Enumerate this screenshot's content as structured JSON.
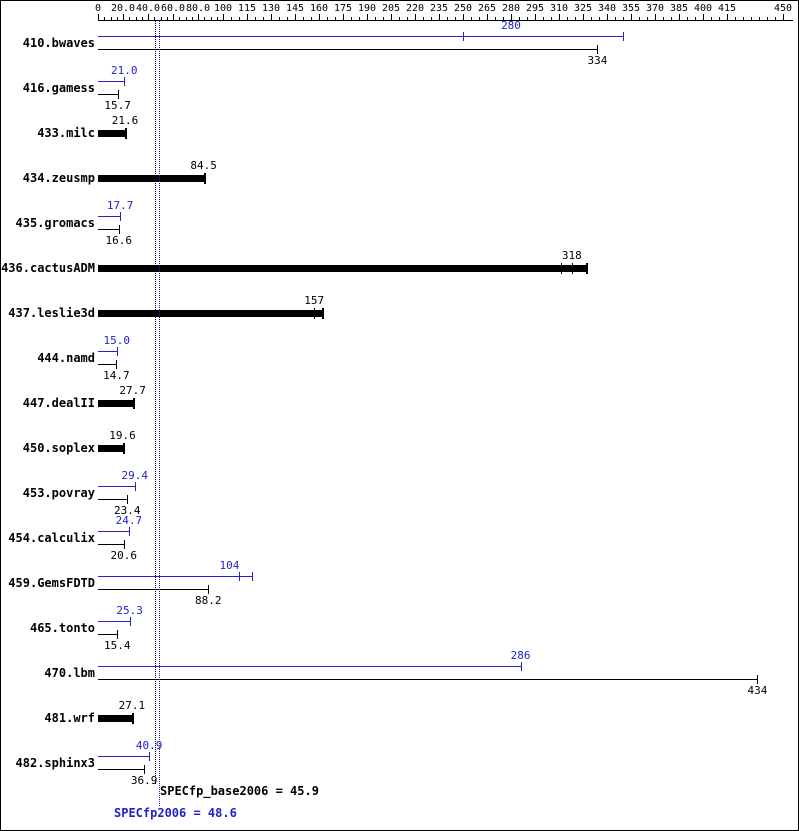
{
  "chart_data": {
    "type": "bar",
    "orientation": "horizontal",
    "title": "",
    "colors": {
      "peak": "#2222cc",
      "base": "#000000"
    },
    "axis": {
      "position": "top",
      "ticks": [
        {
          "v": 0,
          "label": "0"
        },
        {
          "v": 20,
          "label": "20.0"
        },
        {
          "v": 40,
          "label": "40.0"
        },
        {
          "v": 60,
          "label": "60.0"
        },
        {
          "v": 80,
          "label": "80.0"
        },
        {
          "v": 100,
          "label": "100"
        },
        {
          "v": 115,
          "label": "115"
        },
        {
          "v": 130,
          "label": "130"
        },
        {
          "v": 145,
          "label": "145"
        },
        {
          "v": 160,
          "label": "160"
        },
        {
          "v": 175,
          "label": "175"
        },
        {
          "v": 190,
          "label": "190"
        },
        {
          "v": 205,
          "label": "205"
        },
        {
          "v": 220,
          "label": "220"
        },
        {
          "v": 235,
          "label": "235"
        },
        {
          "v": 250,
          "label": "250"
        },
        {
          "v": 265,
          "label": "265"
        },
        {
          "v": 280,
          "label": "280"
        },
        {
          "v": 295,
          "label": "295"
        },
        {
          "v": 310,
          "label": "310"
        },
        {
          "v": 325,
          "label": "325"
        },
        {
          "v": 340,
          "label": "340"
        },
        {
          "v": 355,
          "label": "355"
        },
        {
          "v": 370,
          "label": "370"
        },
        {
          "v": 385,
          "label": "385"
        },
        {
          "v": 400,
          "label": "400"
        },
        {
          "v": 415,
          "label": "415"
        },
        {
          "v": 450,
          "label": "450"
        }
      ]
    },
    "benchmarks": [
      {
        "name": "410.bwaves",
        "peak": {
          "label": "280",
          "value": 280,
          "bar_end": 350,
          "ticks": [
            250
          ]
        },
        "base": {
          "label": "334",
          "value": 334
        }
      },
      {
        "name": "416.gamess",
        "peak": {
          "label": "21.0",
          "value": 21.0
        },
        "base": {
          "label": "15.7",
          "value": 15.7
        }
      },
      {
        "name": "433.milc",
        "single": {
          "label": "21.6",
          "value": 21.6
        }
      },
      {
        "name": "434.zeusmp",
        "single": {
          "label": "84.5",
          "value": 84.5
        }
      },
      {
        "name": "435.gromacs",
        "peak": {
          "label": "17.7",
          "value": 17.7
        },
        "base": {
          "label": "16.6",
          "value": 16.6
        }
      },
      {
        "name": "436.cactusADM",
        "single": {
          "label": "318",
          "value": 318,
          "bar_end": 327,
          "ticks": [
            311,
            318,
            327
          ]
        }
      },
      {
        "name": "437.leslie3d",
        "single": {
          "label": "157",
          "value": 157,
          "bar_end": 162,
          "ticks": [
            157,
            162
          ]
        }
      },
      {
        "name": "444.namd",
        "peak": {
          "label": "15.0",
          "value": 15.0
        },
        "base": {
          "label": "14.7",
          "value": 14.7
        }
      },
      {
        "name": "447.dealII",
        "single": {
          "label": "27.7",
          "value": 27.7
        }
      },
      {
        "name": "450.soplex",
        "single": {
          "label": "19.6",
          "value": 19.6
        }
      },
      {
        "name": "453.povray",
        "peak": {
          "label": "29.4",
          "value": 29.4
        },
        "base": {
          "label": "23.4",
          "value": 23.4
        }
      },
      {
        "name": "454.calculix",
        "peak": {
          "label": "24.7",
          "value": 24.7
        },
        "base": {
          "label": "20.6",
          "value": 20.6
        }
      },
      {
        "name": "459.GemsFDTD",
        "peak": {
          "label": "104",
          "value": 104,
          "bar_end": 118,
          "ticks": [
            110,
            118
          ]
        },
        "base": {
          "label": "88.2",
          "value": 88.2
        }
      },
      {
        "name": "465.tonto",
        "peak": {
          "label": "25.3",
          "value": 25.3
        },
        "base": {
          "label": "15.4",
          "value": 15.4
        }
      },
      {
        "name": "470.lbm",
        "peak": {
          "label": "286",
          "value": 286
        },
        "base": {
          "label": "434",
          "value": 434
        }
      },
      {
        "name": "481.wrf",
        "single": {
          "label": "27.1",
          "value": 27.1
        }
      },
      {
        "name": "482.sphinx3",
        "peak": {
          "label": "40.9",
          "value": 40.9
        },
        "base": {
          "label": "36.9",
          "value": 36.9
        }
      }
    ],
    "summary": {
      "base_text": "SPECfp_base2006 = 45.9",
      "base_value": 45.9,
      "peak_text": "SPECfp2006 = 48.6",
      "peak_value": 48.6
    }
  }
}
